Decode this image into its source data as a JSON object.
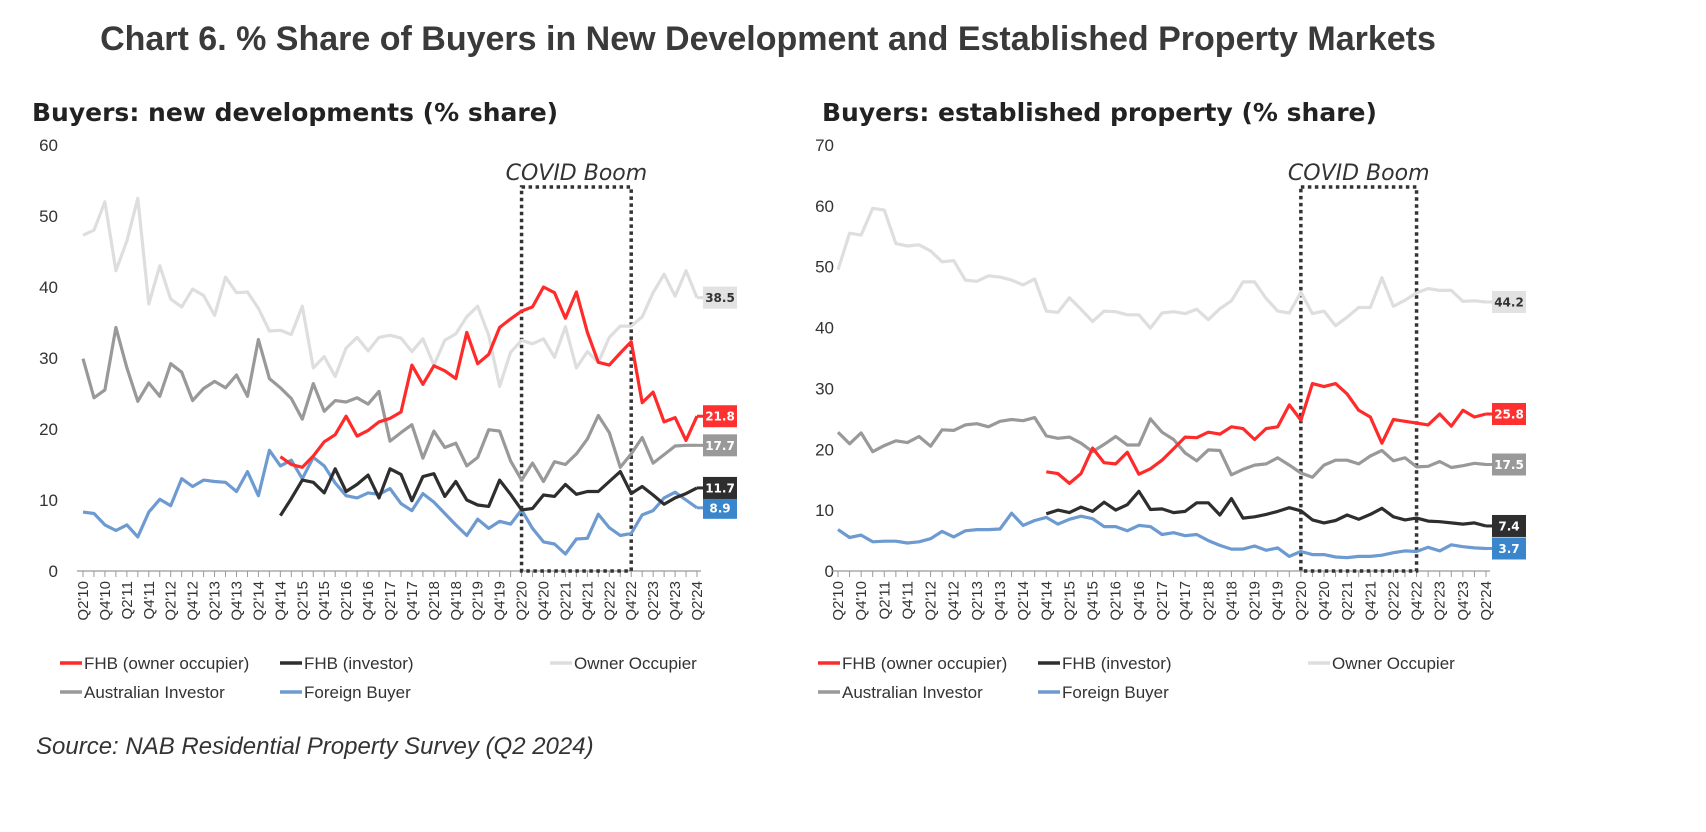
{
  "title": "Chart 6. % Share of Buyers in New Development and Established Property Markets",
  "source": "Source: NAB Residential Property Survey (Q2 2024)",
  "legend": [
    {
      "name": "FHB (owner occupier)",
      "color": "#ff2b2b"
    },
    {
      "name": "FHB (investor)",
      "color": "#2e2e2e"
    },
    {
      "name": "Owner Occupier",
      "color": "#dedede"
    },
    {
      "name": "Australian Investor",
      "color": "#999999"
    },
    {
      "name": "Foreign Buyer",
      "color": "#6d9ad0"
    }
  ],
  "chart_data": [
    {
      "type": "line",
      "title": "Buyers: new developments (% share)",
      "annotation": "COVID Boom",
      "annotation_range": [
        "Q2'20",
        "Q4'22"
      ],
      "ylim": [
        0,
        60
      ],
      "yticks": [
        0,
        10,
        20,
        30,
        40,
        50,
        60
      ],
      "grid": false,
      "legend": "bottom",
      "x_start": "Q2'10",
      "x_end": "Q2'24",
      "xtick_labels": [
        "Q2'10",
        "Q4'10",
        "Q2'11",
        "Q4'11",
        "Q2'12",
        "Q4'12",
        "Q2'13",
        "Q4'13",
        "Q2'14",
        "Q4'14",
        "Q2'15",
        "Q4'15",
        "Q2'16",
        "Q4'16",
        "Q2'17",
        "Q4'17",
        "Q2'18",
        "Q4'18",
        "Q2'19",
        "Q4'19",
        "Q2'20",
        "Q4'20",
        "Q2'21",
        "Q4'21",
        "Q2'22",
        "Q4'22",
        "Q2'23",
        "Q4'23",
        "Q2'24"
      ],
      "series": [
        {
          "name": "Owner Occupier",
          "color": "#dedede",
          "label_bg": "#e2e2e2",
          "label_fg": "#333333",
          "end_label": "38.5",
          "values": [
            47.3,
            48,
            52,
            42.3,
            46.5,
            52.5,
            37.6,
            43,
            38.3,
            37.2,
            39.7,
            38.8,
            36,
            41.4,
            39.2,
            39.3,
            37,
            33.8,
            33.9,
            33.3,
            37.3,
            28.6,
            30.2,
            27.4,
            31.4,
            32.9,
            31,
            32.9,
            33.2,
            32.8,
            30.9,
            32.7,
            29,
            32.5,
            33.4,
            35.8,
            37.3,
            33.2,
            26,
            30.8,
            32.5,
            32,
            32.7,
            30.1,
            34.4,
            28.6,
            30.9,
            29.4,
            32.9,
            34.5,
            34.5,
            35.8,
            39.2,
            41.8,
            38.7,
            42.3,
            38.5
          ]
        },
        {
          "name": "Australian Investor",
          "color": "#999999",
          "label_bg": "#999999",
          "label_fg": "#ffffff",
          "end_label": "17.7",
          "values": [
            29.9,
            24.4,
            25.5,
            34.3,
            28.6,
            23.9,
            26.5,
            24.6,
            29.2,
            28,
            24,
            25.7,
            26.7,
            25.8,
            27.6,
            24.6,
            32.6,
            27.1,
            25.8,
            24.3,
            21.4,
            26.4,
            22.5,
            24,
            23.8,
            24.4,
            23.5,
            25.3,
            18.3,
            19.5,
            20.6,
            15.9,
            19.7,
            17.4,
            18,
            14.8,
            16,
            19.9,
            19.7,
            15.5,
            12.8,
            15.2,
            12.6,
            15.4,
            15,
            16.5,
            18.6,
            21.9,
            19.5,
            14.6,
            16.5,
            18.8,
            15.2,
            16.4,
            17.6,
            17.7,
            17.7
          ]
        },
        {
          "name": "Foreign Buyer",
          "color": "#6d9ad0",
          "label_bg": "#3a86cc",
          "label_fg": "#ffffff",
          "end_label": "8.9",
          "values": [
            8.3,
            8.1,
            6.5,
            5.7,
            6.5,
            4.8,
            8.3,
            10.1,
            9.2,
            13,
            11.9,
            12.8,
            12.6,
            12.5,
            11.2,
            14,
            10.6,
            17,
            14.8,
            15.6,
            13,
            16,
            14.8,
            12.4,
            10.6,
            10.3,
            11,
            10.8,
            11.6,
            9.5,
            8.5,
            10.9,
            9.7,
            8.1,
            6.5,
            5,
            7.3,
            6,
            7,
            6.6,
            8.6,
            6,
            4.1,
            3.8,
            2.4,
            4.5,
            4.6,
            8,
            6.1,
            5,
            5.3,
            7.9,
            8.5,
            10.3,
            11.1,
            10,
            8.9
          ]
        },
        {
          "name": "FHB (investor)",
          "color": "#2e2e2e",
          "label_bg": "#2e2e2e",
          "label_fg": "#ffffff",
          "end_label": "11.7",
          "values": [
            null,
            null,
            null,
            null,
            null,
            null,
            null,
            null,
            null,
            null,
            null,
            null,
            null,
            null,
            null,
            null,
            null,
            null,
            7.8,
            10.2,
            12.8,
            12.5,
            11,
            14.4,
            11.2,
            12.2,
            13.5,
            10.3,
            14.4,
            13.6,
            9.9,
            13.3,
            13.7,
            10.5,
            12.6,
            10,
            9.3,
            9.1,
            12.8,
            10.8,
            8.6,
            8.8,
            10.7,
            10.5,
            12.2,
            10.8,
            11.2,
            11.2,
            12.6,
            14,
            10.9,
            11.9,
            10.7,
            9.4,
            10.3,
            10.9,
            11.7
          ]
        },
        {
          "name": "FHB (owner occupier)",
          "color": "#ff2b2b",
          "label_bg": "#ff3030",
          "label_fg": "#ffffff",
          "end_label": "21.8",
          "values": [
            null,
            null,
            null,
            null,
            null,
            null,
            null,
            null,
            null,
            null,
            null,
            null,
            null,
            null,
            null,
            null,
            null,
            null,
            16.1,
            15,
            14.6,
            16.2,
            18.2,
            19.2,
            21.8,
            19,
            19.8,
            21,
            21.5,
            22.4,
            29,
            26.3,
            28.9,
            28.2,
            27.1,
            33.6,
            29.2,
            30.5,
            34.3,
            35.5,
            36.6,
            37.2,
            40,
            39.2,
            35.6,
            39.3,
            33.6,
            29.4,
            29,
            30.7,
            32.3,
            23.7,
            25.2,
            21,
            21.6,
            18.4,
            21.8
          ]
        }
      ]
    },
    {
      "type": "line",
      "title": "Buyers: established property (% share)",
      "annotation": "COVID Boom",
      "annotation_range": [
        "Q2'20",
        "Q4'22"
      ],
      "ylim": [
        0,
        70
      ],
      "yticks": [
        0,
        10,
        20,
        30,
        40,
        50,
        60,
        70
      ],
      "grid": false,
      "legend": "bottom",
      "x_start": "Q2'10",
      "x_end": "Q2'24",
      "xtick_labels": [
        "Q2'10",
        "Q4'10",
        "Q2'11",
        "Q4'11",
        "Q2'12",
        "Q4'12",
        "Q2'13",
        "Q4'13",
        "Q2'14",
        "Q4'14",
        "Q2'15",
        "Q4'15",
        "Q2'16",
        "Q4'16",
        "Q2'17",
        "Q4'17",
        "Q2'18",
        "Q4'18",
        "Q2'19",
        "Q4'19",
        "Q2'20",
        "Q4'20",
        "Q2'21",
        "Q4'21",
        "Q2'22",
        "Q4'22",
        "Q2'23",
        "Q4'23",
        "Q2'24"
      ],
      "series": [
        {
          "name": "Owner Occupier",
          "color": "#dedede",
          "label_bg": "#e2e2e2",
          "label_fg": "#333333",
          "end_label": "44.2",
          "values": [
            49.5,
            55.5,
            55.2,
            59.6,
            59.3,
            53.8,
            53.4,
            53.6,
            52.6,
            50.8,
            51,
            47.8,
            47.6,
            48.5,
            48.3,
            47.8,
            47,
            48,
            42.7,
            42.5,
            44.9,
            43,
            41,
            42.7,
            42.6,
            42.1,
            42.1,
            39.9,
            42.4,
            42.6,
            42.3,
            43,
            41.3,
            43.1,
            44.4,
            47.5,
            47.5,
            44.8,
            42.7,
            42.4,
            45.8,
            42.3,
            42.7,
            40.3,
            41.7,
            43.3,
            43.3,
            48.2,
            43.5,
            44.5,
            45.7,
            46.4,
            46.1,
            46.1,
            44.3,
            44.4,
            44.2
          ]
        },
        {
          "name": "Australian Investor",
          "color": "#999999",
          "label_bg": "#999999",
          "label_fg": "#ffffff",
          "end_label": "17.5",
          "values": [
            22.8,
            20.9,
            22.7,
            19.6,
            20.6,
            21.4,
            21.1,
            22.1,
            20.5,
            23.2,
            23.1,
            24,
            24.2,
            23.7,
            24.6,
            24.9,
            24.7,
            25.2,
            22.2,
            21.8,
            22,
            21,
            19.6,
            20.8,
            22.1,
            20.7,
            20.7,
            25,
            22.8,
            21.6,
            19.4,
            18.1,
            19.9,
            19.8,
            15.8,
            16.7,
            17.4,
            17.6,
            18.6,
            17.4,
            16.1,
            15.4,
            17.4,
            18.2,
            18.2,
            17.6,
            18.9,
            19.8,
            18.1,
            18.6,
            17.1,
            17.2,
            18,
            17,
            17.3,
            17.7,
            17.5
          ]
        },
        {
          "name": "Foreign Buyer",
          "color": "#6d9ad0",
          "label_bg": "#3a86cc",
          "label_fg": "#ffffff",
          "end_label": "3.7",
          "values": [
            6.8,
            5.5,
            5.9,
            4.8,
            4.9,
            4.9,
            4.6,
            4.8,
            5.3,
            6.5,
            5.6,
            6.6,
            6.8,
            6.8,
            6.9,
            9.5,
            7.5,
            8.3,
            8.8,
            7.7,
            8.5,
            9,
            8.6,
            7.3,
            7.3,
            6.6,
            7.5,
            7.3,
            6,
            6.3,
            5.8,
            6,
            5,
            4.2,
            3.6,
            3.6,
            4.1,
            3.4,
            3.8,
            2.4,
            3.2,
            2.7,
            2.7,
            2.3,
            2.2,
            2.4,
            2.4,
            2.6,
            3,
            3.3,
            3.2,
            3.9,
            3.3,
            4.3,
            4,
            3.8,
            3.7
          ]
        },
        {
          "name": "FHB (investor)",
          "color": "#2e2e2e",
          "label_bg": "#2e2e2e",
          "label_fg": "#ffffff",
          "end_label": "7.4",
          "values": [
            null,
            null,
            null,
            null,
            null,
            null,
            null,
            null,
            null,
            null,
            null,
            null,
            null,
            null,
            null,
            null,
            null,
            null,
            9.4,
            10,
            9.6,
            10.5,
            9.8,
            11.3,
            10,
            10.9,
            13.1,
            10.1,
            10.2,
            9.6,
            9.8,
            11.2,
            11.2,
            9.2,
            11.9,
            8.7,
            8.9,
            9.3,
            9.8,
            10.4,
            9.9,
            8.4,
            7.9,
            8.3,
            9.2,
            8.5,
            9.3,
            10.3,
            8.9,
            8.4,
            8.7,
            8.2,
            8.1,
            7.9,
            7.7,
            7.9,
            7.4
          ]
        },
        {
          "name": "FHB (owner occupier)",
          "color": "#ff2b2b",
          "label_bg": "#ff3030",
          "label_fg": "#ffffff",
          "end_label": "25.8",
          "values": [
            null,
            null,
            null,
            null,
            null,
            null,
            null,
            null,
            null,
            null,
            null,
            null,
            null,
            null,
            null,
            null,
            null,
            null,
            16.3,
            16,
            14.4,
            16,
            20.2,
            17.8,
            17.6,
            19.5,
            15.9,
            16.8,
            18.2,
            20.1,
            22,
            21.9,
            22.8,
            22.5,
            23.7,
            23.4,
            21.6,
            23.4,
            23.7,
            27.3,
            24.8,
            30.8,
            30.3,
            30.8,
            29.1,
            26.4,
            25.3,
            21,
            24.9,
            24.6,
            24.3,
            24,
            25.8,
            23.8,
            26.4,
            25.3,
            25.8
          ]
        }
      ]
    }
  ]
}
